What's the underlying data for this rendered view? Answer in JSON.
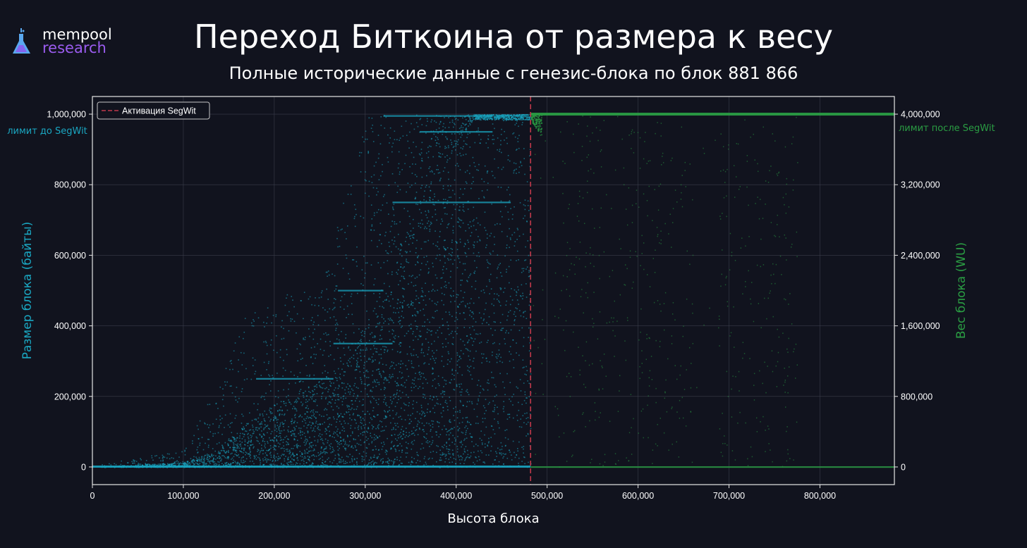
{
  "brand": {
    "name_line1": "mempool",
    "name_line2": "research",
    "colors": {
      "line1": "#ffffff",
      "line2": "#9b5cf0",
      "flask": "#5aa8f0"
    }
  },
  "title": "Переход Биткоина от размера к весу",
  "subtitle": "Полные исторические данные с генезис-блока по блок 881 866",
  "chart_data": {
    "type": "scatter",
    "xlabel": "Высота блока",
    "ylabel_left": "Размер блока (байты)",
    "ylabel_right": "Вес блока (WU)",
    "xlim": [
      0,
      881866
    ],
    "ylim_left": [
      -50000,
      1050000
    ],
    "ylim_right": [
      -200000,
      4200000
    ],
    "x_ticks": [
      0,
      100000,
      200000,
      300000,
      400000,
      500000,
      600000,
      700000,
      800000
    ],
    "x_tick_labels": [
      "0",
      "100,000",
      "200,000",
      "300,000",
      "400,000",
      "500,000",
      "600,000",
      "700,000",
      "800,000"
    ],
    "y_left_ticks": [
      0,
      200000,
      400000,
      600000,
      800000,
      1000000
    ],
    "y_left_tick_labels": [
      "0",
      "200,000",
      "400,000",
      "600,000",
      "800,000",
      "1,000,000"
    ],
    "y_right_ticks": [
      0,
      800000,
      1600000,
      2400000,
      3200000,
      4000000
    ],
    "y_right_tick_labels": [
      "0",
      "800,000",
      "1,600,000",
      "2,400,000",
      "3,200,000",
      "4,000,000"
    ],
    "grid": true,
    "legend": {
      "placement": "top-left",
      "entries": [
        {
          "label": "Активация SegWit",
          "style": "dashed",
          "color": "#c0394b"
        }
      ]
    },
    "segwit_activation_height": 481824,
    "annotations": {
      "left_limit": "лимит до SegWit",
      "right_limit": "лимит после SegWit"
    },
    "series": [
      {
        "axis": "left",
        "color": "#1aa7c2",
        "x_range": [
          0,
          481824
        ],
        "trend": [
          {
            "x": 0,
            "typical_max": 1000,
            "cap": 5000
          },
          {
            "x": 100000,
            "typical_max": 15000,
            "cap": 50000
          },
          {
            "x": 130000,
            "typical_max": 40000,
            "cap": 200000
          },
          {
            "x": 180000,
            "typical_max": 150000,
            "cap": 500000
          },
          {
            "x": 250000,
            "typical_max": 250000,
            "cap": 500000
          },
          {
            "x": 300000,
            "typical_max": 400000,
            "cap": 1000000
          },
          {
            "x": 360000,
            "typical_max": 750000,
            "cap": 1000000
          },
          {
            "x": 420000,
            "typical_max": 990000,
            "cap": 1000000
          },
          {
            "x": 481824,
            "typical_max": 1000000,
            "cap": 1000000
          }
        ]
      },
      {
        "axis": "right",
        "color": "#2a9d43",
        "x_range": [
          481824,
          881866
        ],
        "bands": [
          {
            "from": 481824,
            "to": 512000,
            "density": "low"
          },
          {
            "from": 512000,
            "to": 565000,
            "density": "high"
          },
          {
            "from": 565000,
            "to": 585000,
            "density": "medium"
          },
          {
            "from": 585000,
            "to": 660000,
            "density": "high"
          },
          {
            "from": 660000,
            "to": 688000,
            "density": "sparse"
          },
          {
            "from": 688000,
            "to": 775000,
            "density": "high"
          },
          {
            "from": 775000,
            "to": 881866,
            "density": "cap-only"
          }
        ],
        "cap": 4000000
      }
    ],
    "colors": {
      "background": "#11131e",
      "axes_frame": "#e6e6e6",
      "grid": "#3a3d4a",
      "left_axis_label": "#1aa7c2",
      "right_axis_label": "#2a9d43",
      "segwit_line": "#c0394b"
    }
  }
}
